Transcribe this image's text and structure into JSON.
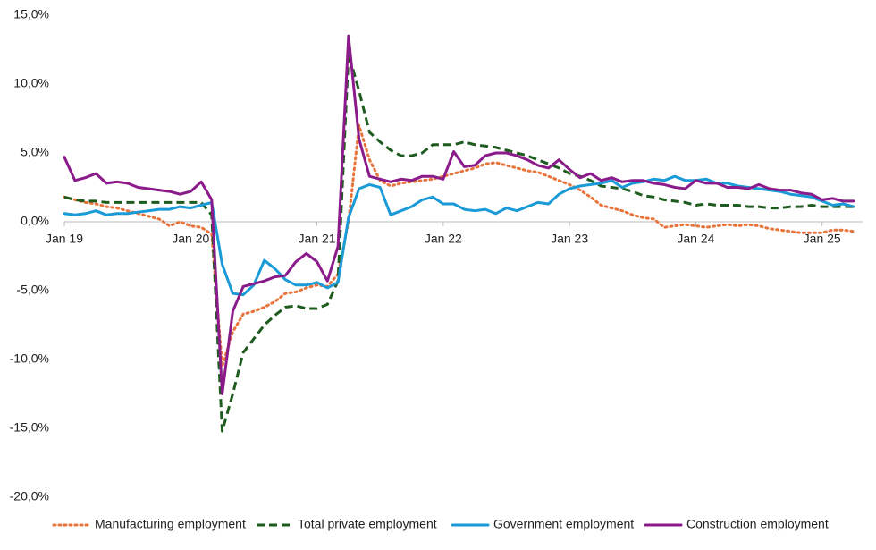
{
  "chart_data": {
    "type": "line",
    "categories": [
      "Jan 19",
      null,
      null,
      null,
      null,
      null,
      null,
      null,
      null,
      null,
      null,
      null,
      "Jan 20",
      null,
      null,
      null,
      null,
      null,
      null,
      null,
      null,
      null,
      null,
      null,
      "Jan 21",
      null,
      null,
      null,
      null,
      null,
      null,
      null,
      null,
      null,
      null,
      null,
      "Jan 22",
      null,
      null,
      null,
      null,
      null,
      null,
      null,
      null,
      null,
      null,
      null,
      "Jan 23",
      null,
      null,
      null,
      null,
      null,
      null,
      null,
      null,
      null,
      null,
      null,
      "Jan 24",
      null,
      null,
      null,
      null,
      null,
      null,
      null,
      null,
      null,
      null,
      null,
      "Jan 25",
      null,
      null,
      null
    ],
    "series": [
      {
        "name": "Manufacturing employment",
        "color": "#e8743b",
        "style": "dotted",
        "values": [
          1.8,
          1.6,
          1.4,
          1.3,
          1.1,
          1.0,
          0.8,
          0.6,
          0.4,
          0.2,
          -0.3,
          0.0,
          -0.3,
          -0.4,
          -0.9,
          -10.5,
          -8.0,
          -6.7,
          -6.5,
          -6.2,
          -5.8,
          -5.2,
          -5.1,
          -4.8,
          -4.6,
          -4.7,
          -3.8,
          0.0,
          7.0,
          4.5,
          3.0,
          2.6,
          2.8,
          2.9,
          3.0,
          3.1,
          3.3,
          3.5,
          3.7,
          3.9,
          4.2,
          4.3,
          4.1,
          3.9,
          3.7,
          3.6,
          3.3,
          3.0,
          2.7,
          2.3,
          1.8,
          1.2,
          1.0,
          0.8,
          0.5,
          0.3,
          0.2,
          -0.4,
          -0.3,
          -0.2,
          -0.3,
          -0.4,
          -0.3,
          -0.2,
          -0.3,
          -0.2,
          -0.3,
          -0.5,
          -0.6,
          -0.7,
          -0.8,
          -0.8,
          -0.8,
          -0.6,
          -0.6,
          -0.7
        ]
      },
      {
        "name": "Total private employment",
        "color": "#1e5b1e",
        "style": "dashed",
        "values": [
          1.8,
          1.6,
          1.5,
          1.5,
          1.4,
          1.4,
          1.4,
          1.4,
          1.4,
          1.4,
          1.4,
          1.4,
          1.4,
          1.4,
          0.5,
          -15.2,
          -12.5,
          -9.5,
          -8.5,
          -7.5,
          -6.8,
          -6.2,
          -6.1,
          -6.3,
          -6.3,
          -6.0,
          -4.3,
          12.2,
          9.5,
          6.5,
          5.8,
          5.2,
          4.8,
          4.8,
          5.0,
          5.6,
          5.6,
          5.6,
          5.8,
          5.6,
          5.5,
          5.4,
          5.2,
          5.0,
          4.8,
          4.5,
          4.2,
          3.9,
          3.5,
          3.3,
          3.0,
          2.6,
          2.5,
          2.4,
          2.2,
          1.9,
          1.8,
          1.6,
          1.5,
          1.4,
          1.2,
          1.3,
          1.2,
          1.2,
          1.2,
          1.1,
          1.1,
          1.0,
          1.0,
          1.1,
          1.1,
          1.2,
          1.1,
          1.1,
          1.1,
          1.1
        ]
      },
      {
        "name": "Government employment",
        "color": "#1a9ad6",
        "style": "solid",
        "values": [
          0.6,
          0.5,
          0.6,
          0.8,
          0.5,
          0.6,
          0.6,
          0.7,
          0.8,
          0.9,
          0.9,
          1.1,
          1.0,
          1.2,
          1.4,
          -3.1,
          -5.2,
          -5.3,
          -4.6,
          -2.8,
          -3.4,
          -4.2,
          -4.6,
          -4.6,
          -4.4,
          -4.8,
          -4.4,
          0.3,
          2.4,
          2.7,
          2.5,
          0.5,
          0.8,
          1.1,
          1.6,
          1.8,
          1.3,
          1.3,
          0.9,
          0.8,
          0.9,
          0.6,
          1.0,
          0.8,
          1.1,
          1.4,
          1.3,
          2.0,
          2.4,
          2.6,
          2.7,
          2.8,
          3.0,
          2.5,
          2.8,
          2.9,
          3.1,
          3.0,
          3.3,
          3.0,
          3.0,
          3.1,
          2.8,
          2.8,
          2.6,
          2.5,
          2.4,
          2.3,
          2.2,
          2.0,
          1.9,
          1.8,
          1.5,
          1.2,
          1.3,
          1.1
        ]
      },
      {
        "name": "Construction employment",
        "color": "#8b1a8b",
        "style": "solid",
        "values": [
          4.7,
          3.0,
          3.2,
          3.5,
          2.8,
          2.9,
          2.8,
          2.5,
          2.4,
          2.3,
          2.2,
          2.0,
          2.2,
          2.9,
          1.6,
          -12.5,
          -6.5,
          -4.7,
          -4.5,
          -4.3,
          -4.0,
          -3.9,
          -2.9,
          -2.3,
          -2.9,
          -4.3,
          -1.8,
          13.5,
          6.0,
          3.3,
          3.1,
          2.9,
          3.1,
          3.0,
          3.3,
          3.3,
          3.1,
          5.1,
          4.0,
          4.1,
          4.8,
          5.0,
          5.0,
          4.8,
          4.5,
          4.1,
          3.9,
          4.5,
          3.8,
          3.2,
          3.5,
          3.0,
          3.2,
          2.9,
          3.0,
          3.0,
          2.8,
          2.7,
          2.5,
          2.4,
          3.0,
          2.8,
          2.8,
          2.5,
          2.5,
          2.4,
          2.7,
          2.4,
          2.3,
          2.3,
          2.1,
          2.0,
          1.6,
          1.7,
          1.5,
          1.5
        ]
      }
    ],
    "ylim": [
      -20,
      15
    ],
    "yticks": [
      {
        "value": -20,
        "label": "-20,0%"
      },
      {
        "value": -15,
        "label": "-15,0%"
      },
      {
        "value": -10,
        "label": "-10,0%"
      },
      {
        "value": -5,
        "label": "-5,0%"
      },
      {
        "value": 0,
        "label": "0,0%"
      },
      {
        "value": 5,
        "label": "5,0%"
      },
      {
        "value": 10,
        "label": "10,0%"
      },
      {
        "value": 15,
        "label": "15,0%"
      }
    ],
    "grid": false
  }
}
